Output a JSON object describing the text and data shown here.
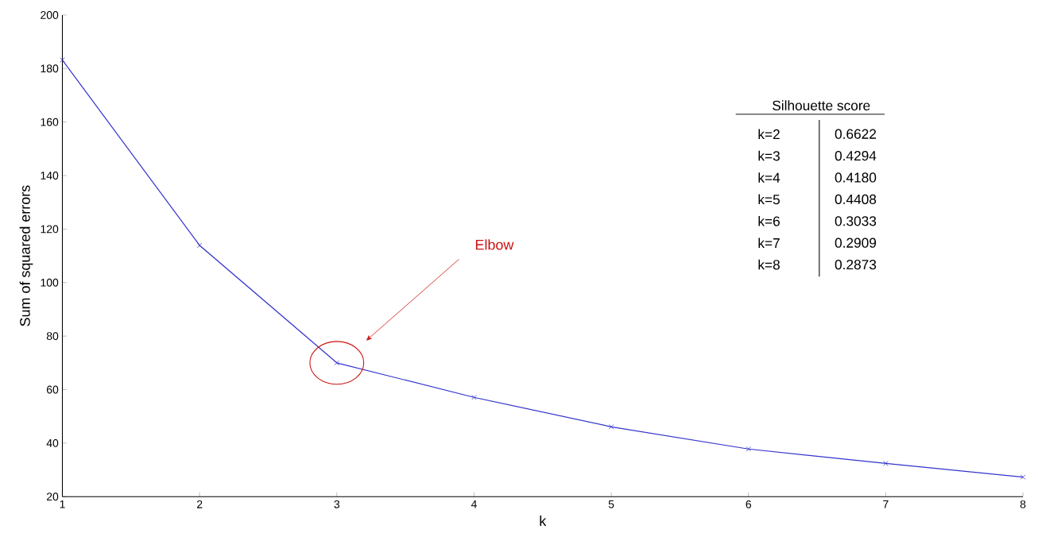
{
  "chart_data": {
    "type": "line",
    "xlabel": "k",
    "ylabel": "Sum of squared errors",
    "x": [
      1,
      2,
      3,
      4,
      5,
      6,
      7,
      8
    ],
    "series": [
      {
        "color": "#3333cc",
        "values": [
          183.2,
          113.9,
          70,
          57.1,
          46.1,
          37.8,
          32.4,
          27.3
        ]
      }
    ],
    "xlim": [
      1,
      8
    ],
    "ylim": [
      20,
      200
    ],
    "xticks": [
      1,
      2,
      3,
      4,
      5,
      6,
      7,
      8
    ],
    "yticks": [
      20,
      40,
      60,
      80,
      100,
      120,
      140,
      160,
      180,
      200
    ],
    "marker": "cross",
    "line_style": "solid",
    "annotations": [
      "Elbow",
      "Silhouette score",
      "k=2",
      "0.6622",
      "k=3",
      "0.4294",
      "k=4",
      "0.4180",
      "k=5",
      "0.4408",
      "k=6",
      "0.3033",
      "k=7",
      "0.2909",
      "k=8",
      "0.2873"
    ]
  }
}
